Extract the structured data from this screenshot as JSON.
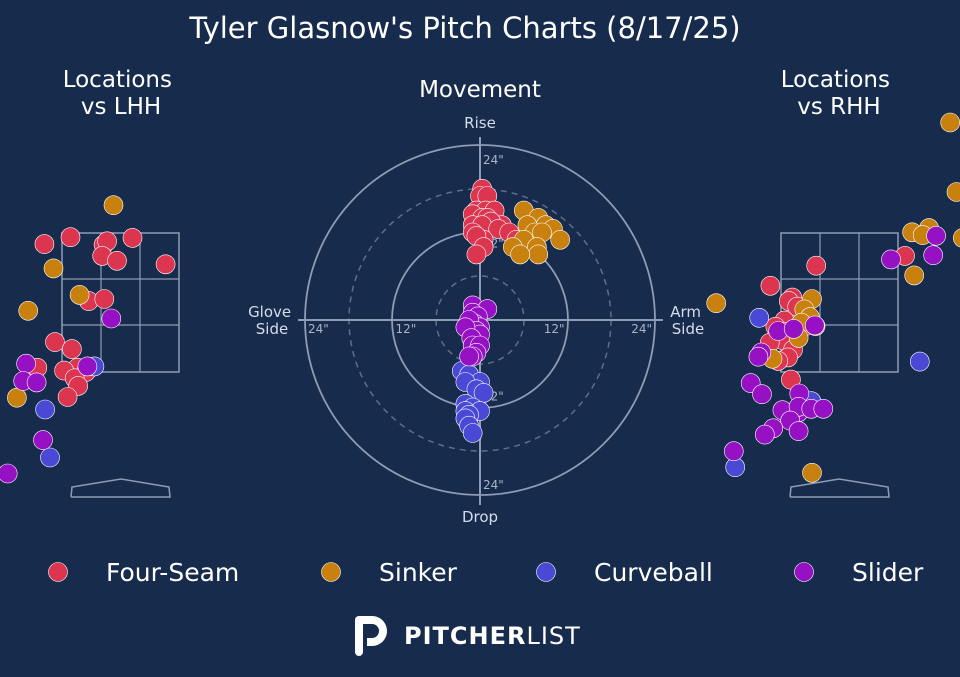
{
  "title": "Tyler Glasnow's Pitch Charts (8/17/25)",
  "colors": {
    "background": "#172b4d",
    "Four-Seam": "#dc3550",
    "Sinker": "#c8800f",
    "Curveball": "#4949d6",
    "Slider": "#9611c4"
  },
  "brand": {
    "wordmark_bold": "PITCHER",
    "wordmark_light": "LIST"
  },
  "chart_data": [
    {
      "type": "scatter",
      "title": "Locations\nvs LHH",
      "pitches": {
        "Four-Seam": [
          [
            -1.08,
            3.34
          ],
          [
            -0.71,
            3.44
          ],
          [
            -0.24,
            3.33
          ],
          [
            -0.19,
            3.38
          ],
          [
            0.17,
            3.43
          ],
          [
            -0.26,
            3.17
          ],
          [
            -0.05,
            3.1
          ],
          [
            0.64,
            3.05
          ],
          [
            -0.45,
            2.52
          ],
          [
            -0.23,
            2.55
          ],
          [
            -0.93,
            1.93
          ],
          [
            -0.69,
            1.83
          ],
          [
            -0.61,
            1.56
          ],
          [
            -1.18,
            1.56
          ],
          [
            -0.8,
            1.52
          ],
          [
            -0.49,
            1.5
          ],
          [
            -0.65,
            1.41
          ],
          [
            -0.6,
            1.3
          ],
          [
            -0.75,
            1.14
          ]
        ],
        "Sinker": [
          [
            -0.1,
            3.9
          ],
          [
            -0.95,
            2.99
          ],
          [
            -0.58,
            2.61
          ],
          [
            -1.31,
            2.38
          ],
          [
            -1.47,
            1.13
          ]
        ],
        "Curveball": [
          [
            -1.98,
            1.48
          ],
          [
            -0.37,
            1.58
          ],
          [
            -1.07,
            0.96
          ],
          [
            -1.0,
            0.27
          ]
        ],
        "Slider": [
          [
            -0.13,
            2.27
          ],
          [
            -1.34,
            1.62
          ],
          [
            -1.38,
            1.37
          ],
          [
            -1.19,
            1.35
          ],
          [
            -0.47,
            1.58
          ],
          [
            -1.1,
            0.52
          ],
          [
            -1.6,
            0.04
          ]
        ]
      }
    },
    {
      "type": "scatter",
      "title": "Movement",
      "axis_labels": {
        "top": "Rise",
        "bottom": "Drop",
        "left": "Glove\nSide",
        "right": "Arm\nSide"
      },
      "ring_labels": [
        "12\"",
        "24\""
      ],
      "pitches": {
        "Four-Seam": [
          [
            0.3,
            18
          ],
          [
            0.5,
            16
          ],
          [
            0,
            17
          ],
          [
            1,
            17
          ],
          [
            -0.5,
            15
          ],
          [
            0.8,
            15
          ],
          [
            2,
            15
          ],
          [
            -1,
            14.5
          ],
          [
            0.3,
            14
          ],
          [
            1,
            14
          ],
          [
            3,
            13
          ],
          [
            1.5,
            13.5
          ],
          [
            -1,
            13
          ],
          [
            0.3,
            13
          ],
          [
            2.5,
            12.5
          ],
          [
            4,
            12
          ],
          [
            5,
            11
          ],
          [
            0.5,
            11
          ],
          [
            -1,
            12
          ],
          [
            -0.5,
            11.5
          ],
          [
            0.5,
            10
          ],
          [
            -0.5,
            9
          ]
        ],
        "Sinker": [
          [
            6,
            15
          ],
          [
            8,
            14
          ],
          [
            9,
            13
          ],
          [
            6.5,
            13
          ],
          [
            7.5,
            12
          ],
          [
            10,
            12.5
          ],
          [
            8.5,
            12
          ],
          [
            11,
            11
          ],
          [
            6,
            11
          ],
          [
            7.8,
            10
          ],
          [
            4.5,
            10
          ],
          [
            8,
            9
          ],
          [
            5.5,
            9
          ]
        ],
        "Curveball": [
          [
            -2.5,
            -7
          ],
          [
            -1.5,
            -7.5
          ],
          [
            0,
            -8.5
          ],
          [
            -2,
            -8.5
          ],
          [
            -0.5,
            -9.5
          ],
          [
            0.5,
            -10
          ],
          [
            -2,
            -11.5
          ],
          [
            -1,
            -12
          ],
          [
            0,
            -12.5
          ],
          [
            -2,
            -12.5
          ],
          [
            -1.5,
            -13
          ],
          [
            -2,
            -13.5
          ],
          [
            -1.5,
            -14.5
          ],
          [
            -1,
            -15.5
          ]
        ],
        "Slider": [
          [
            -1,
            2
          ],
          [
            1,
            1.5
          ],
          [
            -1,
            1
          ],
          [
            -0.3,
            0.5
          ],
          [
            -0.8,
            -0.5
          ],
          [
            0,
            -1
          ],
          [
            -1.5,
            0
          ],
          [
            -0.5,
            -1.5
          ],
          [
            0,
            -2
          ],
          [
            -2,
            -1
          ],
          [
            -1.2,
            -2.5
          ],
          [
            -1,
            -3.5
          ],
          [
            0,
            -3.5
          ],
          [
            -0.5,
            -4.5
          ],
          [
            -1,
            -5
          ],
          [
            -1.5,
            -5
          ]
        ]
      }
    },
    {
      "type": "scatter",
      "title": "Locations\nvs RHH",
      "pitches": {
        "Four-Seam": [
          [
            0.93,
            3.17
          ],
          [
            -0.33,
            3.03
          ],
          [
            -0.98,
            2.74
          ],
          [
            -0.67,
            2.57
          ],
          [
            -0.72,
            2.52
          ],
          [
            -0.6,
            2.44
          ],
          [
            -0.78,
            2.24
          ],
          [
            -0.91,
            2.15
          ],
          [
            -0.79,
            2.08
          ],
          [
            -0.52,
            2.14
          ],
          [
            -0.72,
            1.98
          ],
          [
            -0.79,
            1.95
          ],
          [
            -0.99,
            1.92
          ],
          [
            -0.66,
            1.82
          ],
          [
            -0.73,
            1.71
          ],
          [
            -0.87,
            1.66
          ],
          [
            -0.69,
            1.39
          ]
        ],
        "Sinker": [
          [
            1.57,
            5.09
          ],
          [
            1.66,
            4.09
          ],
          [
            1.27,
            3.57
          ],
          [
            1.03,
            3.51
          ],
          [
            1.18,
            3.47
          ],
          [
            1.75,
            3.43
          ],
          [
            1.06,
            2.89
          ],
          [
            -1.75,
            2.49
          ],
          [
            -0.39,
            2.55
          ],
          [
            -0.5,
            2.4
          ],
          [
            -0.42,
            2.29
          ],
          [
            -0.54,
            2.21
          ],
          [
            -0.34,
            2.16
          ],
          [
            -0.58,
            1.99
          ],
          [
            -0.95,
            1.69
          ],
          [
            -0.39,
            0.05
          ]
        ],
        "Curveball": [
          [
            1.14,
            1.65
          ],
          [
            -1.14,
            2.28
          ],
          [
            -0.4,
            1.08
          ],
          [
            -1.48,
            0.13
          ]
        ],
        "Slider": [
          [
            1.37,
            3.46
          ],
          [
            0.73,
            3.12
          ],
          [
            1.33,
            3.18
          ],
          [
            -0.87,
            2.09
          ],
          [
            -0.35,
            2.17
          ],
          [
            -0.65,
            2.12
          ],
          [
            -1.11,
            1.78
          ],
          [
            -1.15,
            1.72
          ],
          [
            -1.26,
            1.34
          ],
          [
            -1.1,
            1.18
          ],
          [
            -0.57,
            1.19
          ],
          [
            -0.58,
            0.92
          ],
          [
            -0.81,
            0.95
          ],
          [
            -0.58,
            1.0
          ],
          [
            -0.7,
            0.8
          ],
          [
            -0.4,
            0.97
          ],
          [
            -0.23,
            0.97
          ],
          [
            -0.94,
            0.69
          ],
          [
            -1.06,
            0.6
          ],
          [
            -0.58,
            0.65
          ],
          [
            -1.5,
            0.36
          ]
        ]
      }
    }
  ],
  "legend": [
    {
      "label": "Four-Seam",
      "key": "Four-Seam"
    },
    {
      "label": "Sinker",
      "key": "Sinker"
    },
    {
      "label": "Curveball",
      "key": "Curveball"
    },
    {
      "label": "Slider",
      "key": "Slider"
    }
  ]
}
